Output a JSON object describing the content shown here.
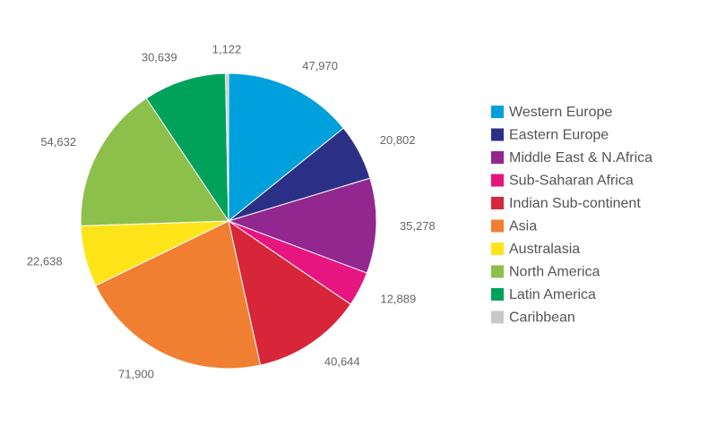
{
  "chart_data": {
    "type": "pie",
    "categories": [
      "Western Europe",
      "Eastern Europe",
      "Middle East & N.Africa",
      "Sub-Saharan Africa",
      "Indian Sub-continent",
      "Asia",
      "Australasia",
      "North America",
      "Latin America",
      "Caribbean"
    ],
    "values": [
      47970,
      20802,
      35278,
      12889,
      40644,
      71900,
      22638,
      54632,
      30639,
      1122
    ],
    "value_labels": [
      "47,970",
      "20,802",
      "35,278",
      "12,889",
      "40,644",
      "71,900",
      "22,638",
      "54,632",
      "30,639",
      "1,122"
    ],
    "colors": [
      "#00a0dc",
      "#2b2f86",
      "#92278f",
      "#e6157f",
      "#d7263a",
      "#f07f32",
      "#ffe41a",
      "#8dc04a",
      "#00a15a",
      "#c8c8c8"
    ],
    "legend": "right"
  }
}
